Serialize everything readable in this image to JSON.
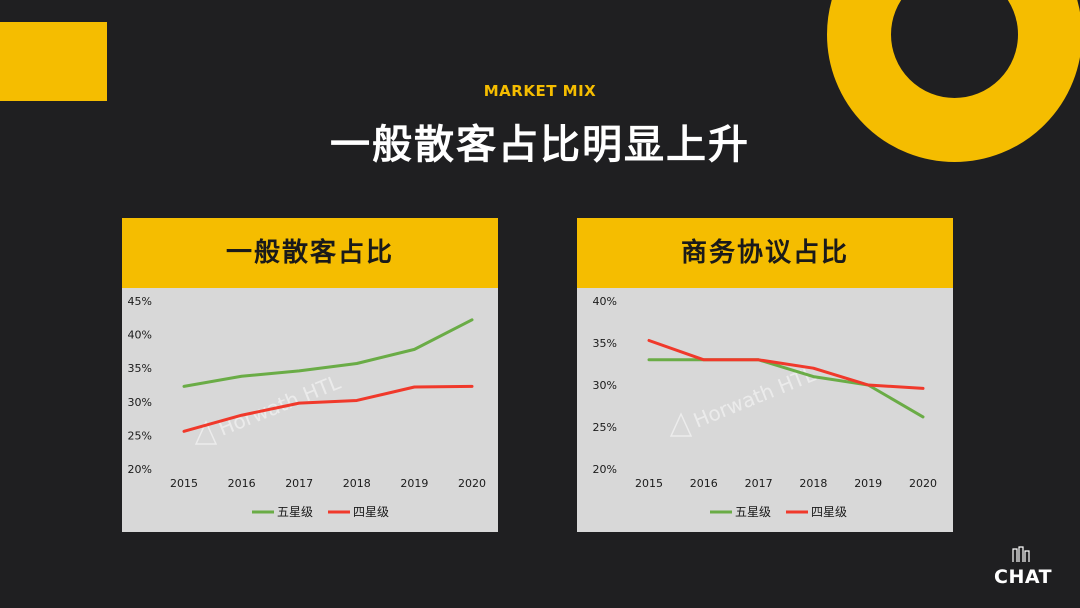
{
  "header": {
    "subtitle": "MARKET MIX",
    "title": "一般散客占比明显上升"
  },
  "colors": {
    "accent": "#f5bd00",
    "background": "#1f1f21",
    "panel": "#d8d8d8",
    "five_star": "#6aac46",
    "four_star": "#f0392b"
  },
  "panels": [
    {
      "title": "一般散客占比"
    },
    {
      "title": "商务协议占比"
    }
  ],
  "watermark": "Horwath HTL",
  "logo": {
    "text": "CHAT"
  },
  "chart_data": [
    {
      "type": "line",
      "title": "一般散客占比",
      "categories": [
        "2015",
        "2016",
        "2017",
        "2018",
        "2019",
        "2020"
      ],
      "ylim": [
        20,
        45
      ],
      "yticks": [
        "20%",
        "25%",
        "30%",
        "35%",
        "40%",
        "45%"
      ],
      "series": [
        {
          "name": "五星级",
          "color": "#6aac46",
          "values": [
            32.3,
            33.8,
            34.6,
            35.7,
            37.8,
            42.2
          ]
        },
        {
          "name": "四星级",
          "color": "#f0392b",
          "values": [
            25.6,
            28.0,
            29.8,
            30.2,
            32.2,
            32.3
          ]
        }
      ],
      "legend": "bottom",
      "grid": false
    },
    {
      "type": "line",
      "title": "商务协议占比",
      "categories": [
        "2015",
        "2016",
        "2017",
        "2018",
        "2019",
        "2020"
      ],
      "ylim": [
        20,
        40
      ],
      "yticks": [
        "20%",
        "25%",
        "30%",
        "35%",
        "40%"
      ],
      "series": [
        {
          "name": "五星级",
          "color": "#6aac46",
          "values": [
            33.0,
            33.0,
            33.0,
            31.0,
            30.0,
            26.2
          ]
        },
        {
          "name": "四星级",
          "color": "#f0392b",
          "values": [
            35.3,
            33.0,
            33.0,
            32.0,
            30.0,
            29.6
          ]
        }
      ],
      "legend": "bottom",
      "grid": false
    }
  ]
}
